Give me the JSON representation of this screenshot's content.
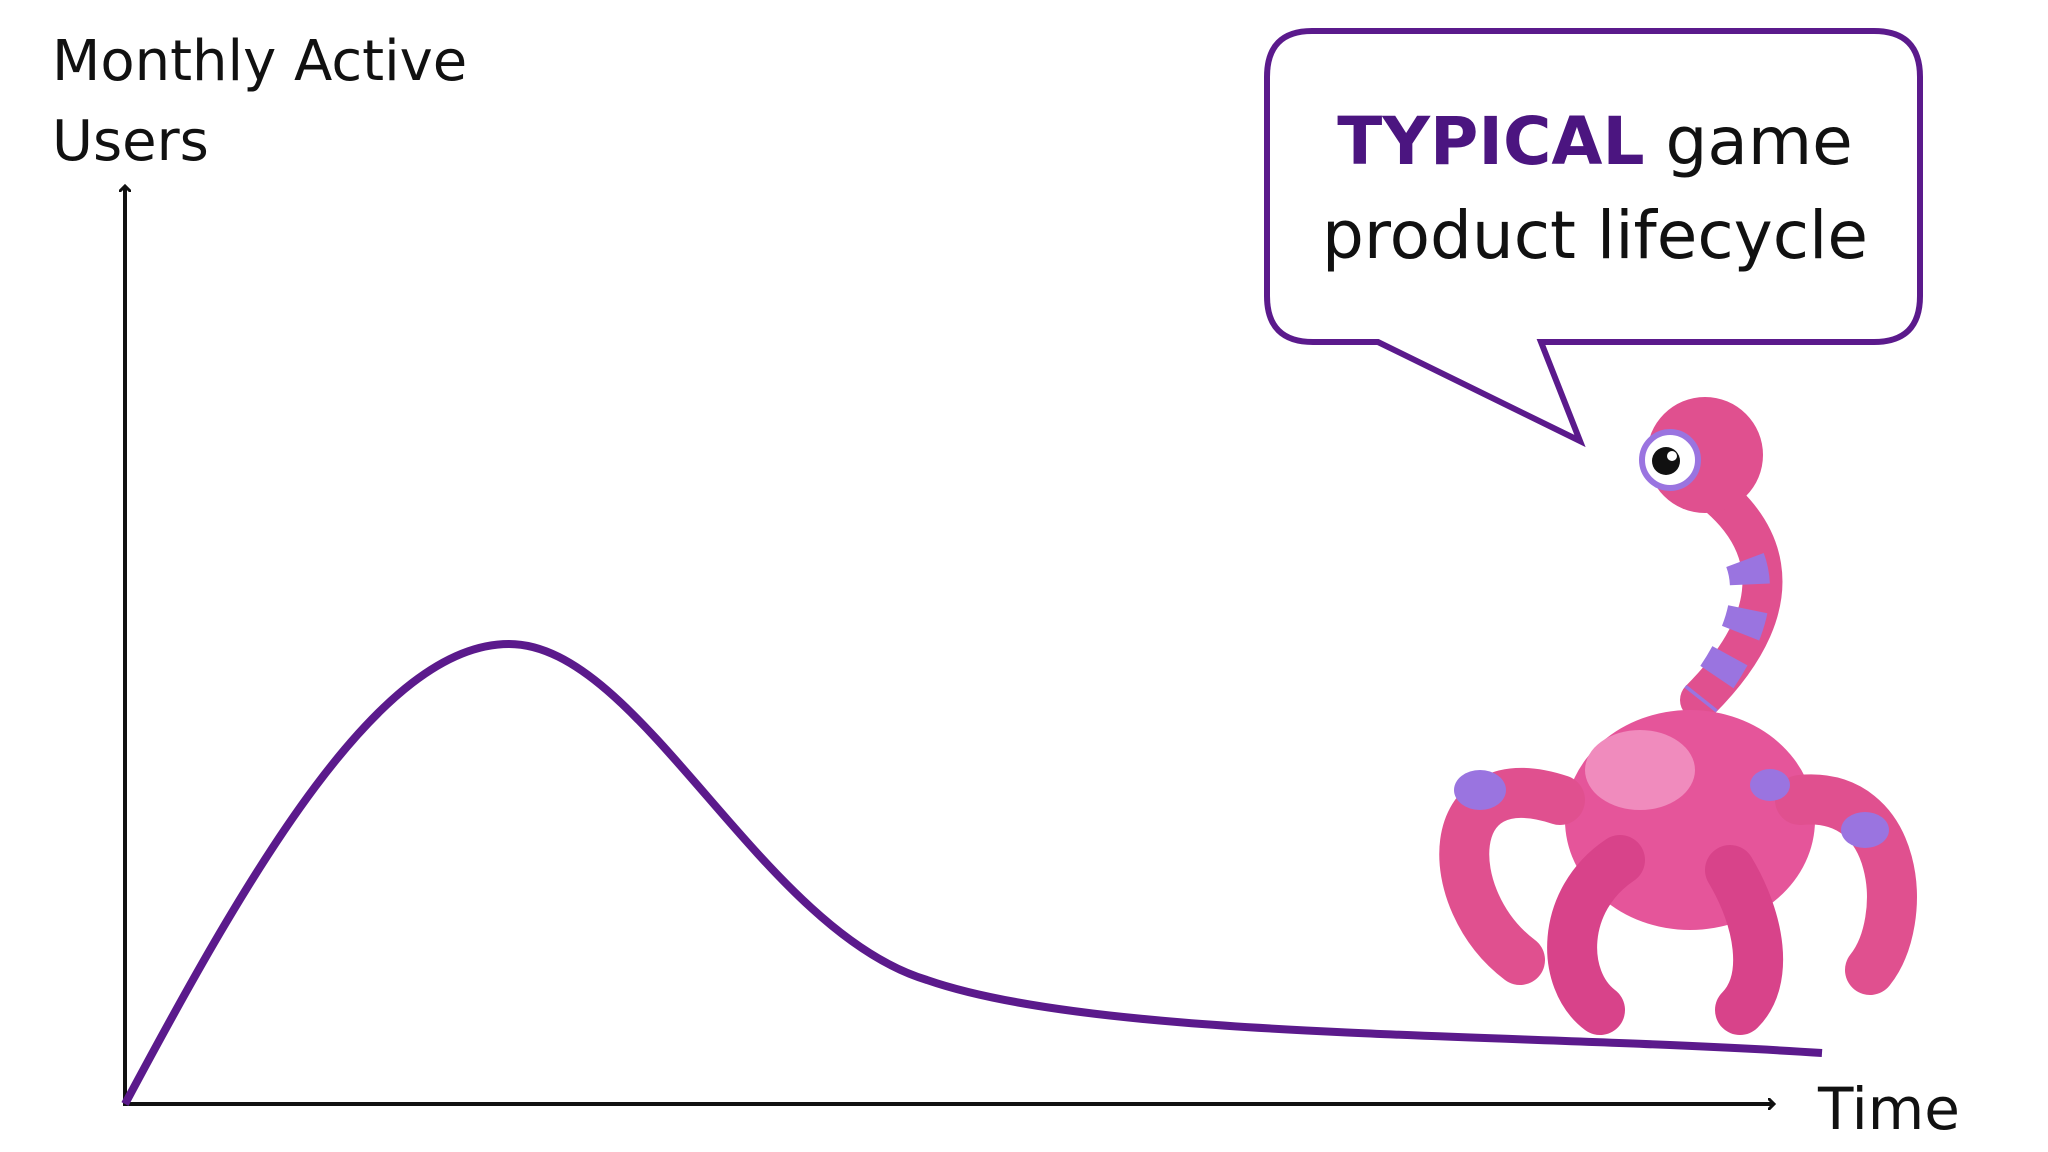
{
  "axes": {
    "y_label": "Monthly Active Users",
    "x_label": "Time"
  },
  "callout": {
    "emphasis": "TYPICAL",
    "text": "game product lifecycle"
  }
}
